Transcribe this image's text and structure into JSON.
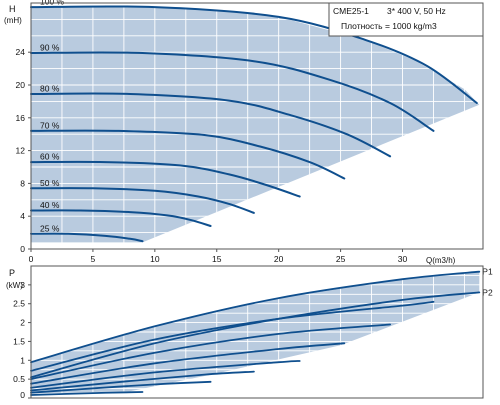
{
  "colors": {
    "envelope_fill": "#b9cbdf",
    "curve": "#0f4f8e",
    "grid": "#ffffff",
    "frame": "#555555",
    "text": "#111111",
    "background": "#ffffff"
  },
  "info": {
    "model": "CME25-1",
    "supply": "3* 400 V, 50 Hz",
    "density": "Плотность = 1000 kg/m3"
  },
  "chart_data": [
    {
      "type": "line",
      "title": "",
      "ylabel": "H",
      "yunit": "(mH)",
      "xlabel": "Q(m3/h)",
      "xlim": [
        0,
        36.5
      ],
      "ylim": [
        0,
        30
      ],
      "x_ticks": [
        0,
        5,
        10,
        15,
        20,
        25,
        30
      ],
      "x_tick_labels": [
        "0",
        "5",
        "10",
        "15",
        "20",
        "25",
        "30"
      ],
      "y_ticks": [
        0,
        4,
        8,
        12,
        16,
        20,
        24
      ],
      "y_tick_labels": [
        "0",
        "4",
        "8",
        "12",
        "16",
        "20",
        "24"
      ],
      "grid": true,
      "envelope": [
        [
          0,
          29.5
        ],
        [
          12,
          29.5
        ],
        [
          20,
          28.3
        ],
        [
          27,
          25.5
        ],
        [
          31,
          23
        ],
        [
          35,
          19.5
        ],
        [
          36.2,
          17.6
        ],
        [
          9,
          0.8
        ],
        [
          0,
          0.8
        ]
      ],
      "series": [
        {
          "name": "100 %",
          "x": [
            0,
            10,
            20,
            27,
            32,
            36
          ],
          "y": [
            29.5,
            29.5,
            28.3,
            25.5,
            22.3,
            17.8
          ]
        },
        {
          "name": "90 %",
          "x": [
            0,
            9,
            18,
            24,
            29,
            32.5
          ],
          "y": [
            23.9,
            23.9,
            22.9,
            20.7,
            17.8,
            14.4
          ]
        },
        {
          "name": "80 %",
          "x": [
            0,
            8,
            16,
            21,
            25.5,
            29
          ],
          "y": [
            18.9,
            18.9,
            18.1,
            16.3,
            14,
            11.3
          ]
        },
        {
          "name": "70 %",
          "x": [
            0,
            7,
            14,
            18.5,
            22.5,
            25.3
          ],
          "y": [
            14.4,
            14.4,
            13.9,
            12.5,
            10.6,
            8.6
          ]
        },
        {
          "name": "60 %",
          "x": [
            0,
            6,
            12,
            16,
            19,
            21.7
          ],
          "y": [
            10.6,
            10.6,
            10.2,
            9.1,
            7.8,
            6.4
          ]
        },
        {
          "name": "50 %",
          "x": [
            0,
            5,
            10,
            13.5,
            16,
            18
          ],
          "y": [
            7.4,
            7.4,
            7.1,
            6.4,
            5.5,
            4.4
          ]
        },
        {
          "name": "40 %",
          "x": [
            0,
            4,
            8,
            11,
            13,
            14.5
          ],
          "y": [
            4.7,
            4.7,
            4.5,
            4.1,
            3.5,
            2.8
          ]
        },
        {
          "name": "25 %",
          "x": [
            0,
            3,
            6,
            8,
            9
          ],
          "y": [
            1.85,
            1.85,
            1.6,
            1.25,
            0.95
          ]
        }
      ]
    },
    {
      "type": "line",
      "title": "",
      "ylabel": "P",
      "yunit": "(kW)",
      "xlim": [
        0,
        36.5
      ],
      "ylim": [
        0,
        3.5
      ],
      "y_ticks": [
        0,
        0.5,
        1,
        1.5,
        2,
        2.5,
        3
      ],
      "y_tick_labels": [
        "0",
        "0.5",
        "1",
        "1.5",
        "2",
        "2.5",
        "3"
      ],
      "grid": true,
      "envelope": [
        [
          0,
          0.95
        ],
        [
          10,
          1.9
        ],
        [
          20,
          2.65
        ],
        [
          30,
          3.15
        ],
        [
          36.2,
          3.35
        ],
        [
          36.2,
          2.8
        ],
        [
          25,
          1.4
        ],
        [
          15,
          0.65
        ],
        [
          8,
          0.18
        ],
        [
          0,
          0.12
        ]
      ],
      "series": [
        {
          "name": "P1",
          "x": [
            0,
            10,
            20,
            30,
            36.2
          ],
          "y": [
            0.95,
            1.9,
            2.65,
            3.15,
            3.35
          ]
        },
        {
          "name": "P2",
          "x": [
            0,
            10,
            20,
            30,
            36.2
          ],
          "y": [
            0.55,
            1.45,
            2.1,
            2.6,
            2.8
          ]
        },
        {
          "name": "",
          "x": [
            0,
            10,
            20,
            30,
            32.5
          ],
          "y": [
            0.72,
            1.55,
            2.1,
            2.45,
            2.55
          ]
        },
        {
          "name": "",
          "x": [
            0,
            10,
            20,
            29
          ],
          "y": [
            0.5,
            1.2,
            1.7,
            1.95
          ]
        },
        {
          "name": "",
          "x": [
            0,
            10,
            20,
            25.3
          ],
          "y": [
            0.38,
            0.92,
            1.3,
            1.45
          ]
        },
        {
          "name": "",
          "x": [
            0,
            10,
            20,
            21.7
          ],
          "y": [
            0.27,
            0.68,
            0.95,
            0.98
          ]
        },
        {
          "name": "",
          "x": [
            0,
            8,
            14,
            18
          ],
          "y": [
            0.2,
            0.45,
            0.62,
            0.7
          ]
        },
        {
          "name": "",
          "x": [
            0,
            7,
            11,
            14.5
          ],
          "y": [
            0.14,
            0.3,
            0.38,
            0.43
          ]
        },
        {
          "name": "",
          "x": [
            0,
            5,
            9
          ],
          "y": [
            0.08,
            0.13,
            0.16
          ]
        }
      ]
    }
  ]
}
